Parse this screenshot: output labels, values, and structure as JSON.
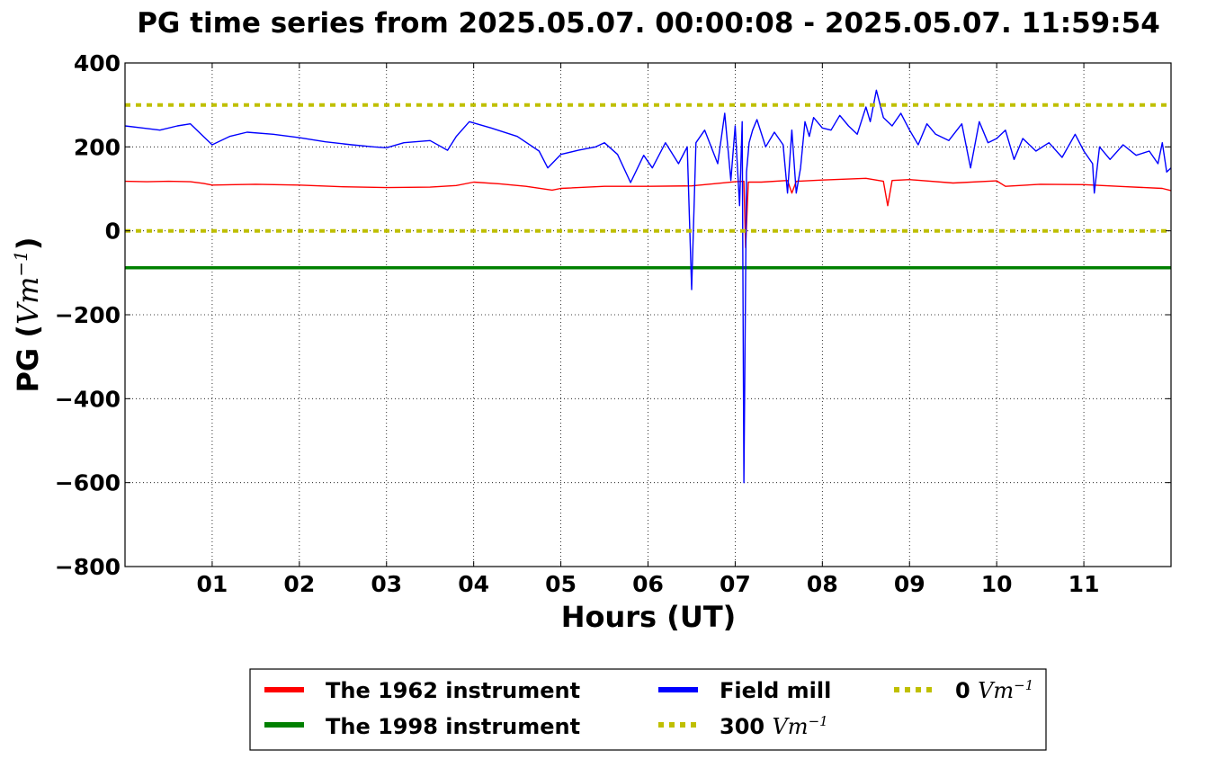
{
  "chart_data": {
    "type": "line",
    "title": "PG time series from 2025.05.07. 00:00:08 - 2025.05.07. 11:59:54",
    "xlabel": "Hours (UT)",
    "ylabel": "PG (",
    "ylabel_unit": "Vm",
    "ylabel_exp": "−1",
    "ylabel_close": ")",
    "xlim": [
      0,
      12
    ],
    "ylim": [
      -800,
      400
    ],
    "grid": true,
    "x_ticks": [
      {
        "value": 1,
        "label": "01"
      },
      {
        "value": 2,
        "label": "02"
      },
      {
        "value": 3,
        "label": "03"
      },
      {
        "value": 4,
        "label": "04"
      },
      {
        "value": 5,
        "label": "05"
      },
      {
        "value": 6,
        "label": "06"
      },
      {
        "value": 7,
        "label": "07"
      },
      {
        "value": 8,
        "label": "08"
      },
      {
        "value": 9,
        "label": "09"
      },
      {
        "value": 10,
        "label": "10"
      },
      {
        "value": 11,
        "label": "11"
      }
    ],
    "y_ticks": [
      {
        "value": 400,
        "label": "400"
      },
      {
        "value": 200,
        "label": "200"
      },
      {
        "value": 0,
        "label": "0"
      },
      {
        "value": -200,
        "label": "−200"
      },
      {
        "value": -400,
        "label": "−400"
      },
      {
        "value": -600,
        "label": "−600"
      },
      {
        "value": -800,
        "label": "−800"
      }
    ],
    "legend_placement": "below",
    "series": [
      {
        "name": "The 1962 instrument",
        "color": "#ff0000",
        "style": "solid",
        "x": [
          0.0,
          0.25,
          0.5,
          0.75,
          0.9,
          1.0,
          1.5,
          2.0,
          2.5,
          3.0,
          3.5,
          3.8,
          4.0,
          4.3,
          4.6,
          4.9,
          5.0,
          5.5,
          6.0,
          6.5,
          6.8,
          7.0,
          7.1,
          7.12,
          7.15,
          7.3,
          7.6,
          7.65,
          7.7,
          8.0,
          8.5,
          8.7,
          8.75,
          8.8,
          9.0,
          9.5,
          10.0,
          10.1,
          10.5,
          11.0,
          11.5,
          11.9,
          12.0
        ],
        "y": [
          118,
          117,
          118,
          117,
          113,
          109,
          111,
          109,
          105,
          103,
          104,
          108,
          116,
          112,
          106,
          97,
          101,
          106,
          106,
          107,
          113,
          117,
          118,
          -40,
          116,
          116,
          120,
          90,
          118,
          121,
          125,
          118,
          60,
          120,
          122,
          114,
          119,
          106,
          111,
          110,
          105,
          101,
          96
        ]
      },
      {
        "name": "The 1998 instrument",
        "color": "#008000",
        "style": "solid",
        "x": [
          0,
          12
        ],
        "y": [
          -88,
          -88
        ]
      },
      {
        "name": "Field mill",
        "color": "#0000ff",
        "style": "solid",
        "x": [
          0.0,
          0.2,
          0.4,
          0.6,
          0.75,
          0.9,
          1.0,
          1.2,
          1.4,
          1.7,
          2.0,
          2.3,
          2.6,
          2.85,
          3.0,
          3.2,
          3.5,
          3.7,
          3.8,
          3.95,
          4.2,
          4.5,
          4.75,
          4.85,
          5.0,
          5.2,
          5.4,
          5.5,
          5.65,
          5.8,
          5.95,
          6.05,
          6.2,
          6.35,
          6.45,
          6.5,
          6.55,
          6.65,
          6.8,
          6.88,
          6.95,
          7.0,
          7.05,
          7.08,
          7.1,
          7.13,
          7.16,
          7.2,
          7.25,
          7.35,
          7.45,
          7.55,
          7.6,
          7.65,
          7.7,
          7.75,
          7.8,
          7.85,
          7.9,
          8.0,
          8.1,
          8.2,
          8.3,
          8.4,
          8.5,
          8.55,
          8.62,
          8.7,
          8.8,
          8.9,
          9.0,
          9.1,
          9.2,
          9.3,
          9.45,
          9.6,
          9.7,
          9.8,
          9.9,
          10.0,
          10.1,
          10.2,
          10.3,
          10.45,
          10.6,
          10.75,
          10.9,
          11.0,
          11.1,
          11.12,
          11.18,
          11.3,
          11.45,
          11.6,
          11.75,
          11.85,
          11.9,
          11.95,
          12.0
        ],
        "y": [
          250,
          245,
          240,
          250,
          255,
          225,
          205,
          225,
          235,
          230,
          222,
          212,
          205,
          200,
          198,
          210,
          215,
          192,
          225,
          260,
          245,
          225,
          190,
          150,
          182,
          192,
          200,
          210,
          182,
          115,
          180,
          150,
          210,
          160,
          200,
          -140,
          210,
          240,
          160,
          280,
          120,
          250,
          60,
          260,
          -600,
          140,
          210,
          240,
          265,
          200,
          235,
          205,
          90,
          240,
          90,
          150,
          260,
          225,
          270,
          245,
          240,
          275,
          250,
          230,
          295,
          260,
          335,
          270,
          250,
          280,
          240,
          205,
          255,
          230,
          215,
          255,
          150,
          260,
          210,
          220,
          240,
          170,
          220,
          190,
          210,
          175,
          230,
          190,
          160,
          90,
          200,
          170,
          205,
          180,
          190,
          160,
          210,
          140,
          150
        ]
      },
      {
        "name": "300",
        "name_unit": "Vm",
        "name_exp": "−1",
        "color": "#bfbf00",
        "style": "dashed",
        "x": [
          0,
          12
        ],
        "y": [
          300,
          300
        ]
      },
      {
        "name": "0",
        "name_unit": "Vm",
        "name_exp": "−1",
        "color": "#bfbf00",
        "style": "dashed",
        "x": [
          0,
          12
        ],
        "y": [
          0,
          0
        ]
      }
    ]
  }
}
